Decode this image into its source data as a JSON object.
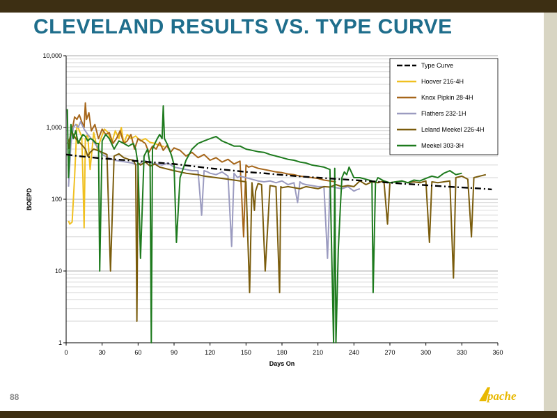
{
  "slide": {
    "title": "CLEVELAND RESULTS VS. TYPE CURVE",
    "page_number": "88",
    "logo_text": "Apache"
  },
  "colors": {
    "title": "#1f6e8c",
    "bars": "#3d2f13",
    "type_curve": "#000000",
    "hoover": "#f0c020",
    "knox": "#a6661a",
    "flathers": "#9b9bc0",
    "leland": "#7a5c0c",
    "meekel": "#1d7a1d"
  },
  "chart_data": {
    "type": "line",
    "y_scale": "log",
    "xlabel": "Days On",
    "ylabel": "BOEPD",
    "xlim": [
      0,
      360
    ],
    "ylim": [
      1,
      10000
    ],
    "x_ticks": [
      "0",
      "30",
      "60",
      "90",
      "120",
      "150",
      "180",
      "210",
      "240",
      "270",
      "300",
      "330",
      "360"
    ],
    "y_ticks": [
      "1",
      "10",
      "100",
      "1,000",
      "10,000"
    ],
    "grid": true,
    "legend_position": "top-right",
    "series": [
      {
        "name": "Type Curve",
        "color": "#000000",
        "dash": true,
        "x": [
          0,
          10,
          20,
          30,
          45,
          60,
          75,
          90,
          105,
          120,
          135,
          150,
          165,
          180,
          195,
          210,
          225,
          240,
          255,
          270,
          285,
          300,
          315,
          330,
          345,
          355
        ],
        "y": [
          420,
          400,
          385,
          370,
          355,
          340,
          325,
          310,
          290,
          270,
          255,
          240,
          230,
          218,
          208,
          200,
          192,
          185,
          178,
          170,
          163,
          157,
          151,
          146,
          141,
          137
        ]
      },
      {
        "name": "Hoover 216-4H",
        "color": "#f0c020",
        "dash": false,
        "x": [
          2,
          3,
          5,
          7,
          9,
          11,
          13,
          14,
          15,
          16,
          18,
          20,
          23,
          26,
          29,
          32,
          35,
          38,
          41,
          44,
          46,
          48,
          51,
          54,
          58,
          62,
          66,
          70,
          74,
          78,
          82
        ],
        "y": [
          50,
          45,
          48,
          200,
          1100,
          900,
          750,
          200,
          40,
          700,
          800,
          260,
          850,
          500,
          700,
          950,
          850,
          600,
          900,
          700,
          1000,
          600,
          800,
          700,
          760,
          650,
          700,
          620,
          600,
          560,
          540
        ]
      },
      {
        "name": "Knox Pipkin 28-4H",
        "color": "#a6661a",
        "dash": false,
        "x": [
          1,
          3,
          5,
          7,
          9,
          11,
          13,
          15,
          16,
          17,
          19,
          21,
          24,
          27,
          30,
          33,
          36,
          39,
          42,
          45,
          48,
          51,
          54,
          57,
          60,
          63,
          66,
          69,
          72,
          75,
          78,
          81,
          84,
          87,
          90,
          95,
          100,
          105,
          110,
          115,
          120,
          125,
          130,
          135,
          140,
          145,
          148,
          150,
          152,
          155,
          160,
          165,
          170,
          175,
          180,
          185,
          190,
          195,
          200,
          205,
          210,
          215,
          220,
          225
        ],
        "y": [
          600,
          700,
          900,
          1400,
          1300,
          1500,
          1200,
          1000,
          2200,
          1300,
          1600,
          900,
          1100,
          700,
          950,
          800,
          850,
          600,
          700,
          900,
          600,
          650,
          800,
          500,
          700,
          650,
          600,
          450,
          550,
          500,
          620,
          480,
          560,
          450,
          520,
          480,
          400,
          450,
          380,
          420,
          350,
          380,
          330,
          360,
          310,
          340,
          30,
          300,
          280,
          290,
          270,
          260,
          250,
          240,
          235,
          225,
          220,
          210,
          205,
          200,
          195,
          185,
          180,
          175
        ]
      },
      {
        "name": "Flathers 232-1H",
        "color": "#9b9bc0",
        "dash": false,
        "x": [
          2,
          4,
          6,
          8,
          10,
          12,
          15,
          18,
          21,
          24,
          27,
          30,
          35,
          40,
          45,
          50,
          55,
          60,
          65,
          70,
          75,
          80,
          85,
          90,
          95,
          100,
          105,
          110,
          113,
          115,
          118,
          120,
          125,
          130,
          135,
          138,
          140,
          143,
          145,
          150,
          155,
          160,
          165,
          170,
          175,
          180,
          185,
          190,
          193,
          195,
          197,
          200,
          205,
          210,
          215,
          218,
          220,
          225,
          230,
          235,
          240,
          242,
          245
        ],
        "y": [
          150,
          600,
          1000,
          1100,
          1000,
          1200,
          950,
          800,
          700,
          600,
          500,
          420,
          380,
          350,
          340,
          330,
          320,
          300,
          350,
          320,
          310,
          300,
          320,
          280,
          270,
          260,
          250,
          250,
          60,
          250,
          240,
          230,
          220,
          240,
          210,
          22,
          230,
          200,
          210,
          200,
          190,
          180,
          175,
          180,
          170,
          180,
          160,
          170,
          90,
          175,
          165,
          160,
          155,
          150,
          150,
          15,
          150,
          145,
          140,
          150,
          130,
          135,
          140
        ]
      },
      {
        "name": "Leland Meekel 226-4H",
        "color": "#7a5c0c",
        "dash": false,
        "x": [
          2,
          4,
          6,
          8,
          10,
          12,
          14,
          16,
          18,
          20,
          23,
          26,
          30,
          34,
          37,
          40,
          44,
          48,
          52,
          56,
          58,
          59,
          60,
          62,
          66,
          70,
          74,
          78,
          82,
          86,
          90,
          95,
          100,
          105,
          110,
          115,
          120,
          125,
          130,
          135,
          140,
          145,
          150,
          153,
          155,
          157,
          158,
          160,
          163,
          166,
          170,
          175,
          178,
          179,
          180,
          185,
          190,
          195,
          200,
          205,
          210,
          215,
          220,
          225,
          230,
          235,
          240,
          245,
          250,
          255,
          260,
          265,
          268,
          270,
          275,
          280,
          285,
          290,
          295,
          300,
          303,
          305,
          310,
          315,
          320,
          323,
          325,
          330,
          335,
          338,
          340,
          345,
          350
        ],
        "y": [
          500,
          900,
          800,
          700,
          650,
          600,
          550,
          500,
          400,
          450,
          500,
          480,
          450,
          420,
          10,
          400,
          430,
          380,
          360,
          350,
          300,
          2,
          320,
          300,
          330,
          290,
          310,
          280,
          270,
          260,
          250,
          240,
          230,
          225,
          220,
          210,
          205,
          200,
          195,
          190,
          185,
          180,
          175,
          5,
          170,
          70,
          130,
          165,
          160,
          10,
          155,
          150,
          5,
          150,
          145,
          150,
          145,
          140,
          150,
          145,
          140,
          150,
          148,
          160,
          150,
          155,
          150,
          180,
          160,
          175,
          170,
          180,
          45,
          170,
          175,
          180,
          170,
          175,
          170,
          180,
          25,
          175,
          170,
          175,
          180,
          8,
          200,
          210,
          190,
          30,
          200,
          210,
          220
        ]
      },
      {
        "name": "Meekel 303-3H",
        "color": "#1d7a1d",
        "dash": false,
        "x": [
          1,
          2,
          4,
          6,
          8,
          10,
          12,
          14,
          16,
          18,
          20,
          22,
          25,
          27,
          28,
          30,
          33,
          36,
          40,
          44,
          48,
          52,
          56,
          58,
          60,
          62,
          65,
          68,
          70,
          71,
          72,
          74,
          76,
          78,
          80,
          81,
          82,
          84,
          86,
          88,
          90,
          92,
          95,
          100,
          105,
          110,
          115,
          120,
          125,
          130,
          135,
          140,
          145,
          150,
          155,
          160,
          165,
          170,
          175,
          180,
          185,
          190,
          195,
          200,
          205,
          210,
          215,
          220,
          223,
          224,
          225,
          227,
          229,
          230,
          232,
          234,
          236,
          240,
          245,
          250,
          255,
          256,
          258,
          260,
          265,
          270,
          275,
          280,
          285,
          290,
          295,
          300,
          305,
          310,
          315,
          320,
          325,
          330
        ],
        "y": [
          1800,
          200,
          1100,
          700,
          900,
          600,
          700,
          800,
          750,
          650,
          700,
          680,
          600,
          600,
          10,
          650,
          800,
          700,
          500,
          650,
          600,
          550,
          600,
          500,
          300,
          15,
          400,
          500,
          300,
          1,
          500,
          600,
          700,
          800,
          700,
          2000,
          700,
          600,
          500,
          400,
          300,
          25,
          200,
          350,
          500,
          600,
          650,
          700,
          750,
          650,
          600,
          550,
          550,
          500,
          480,
          460,
          450,
          420,
          400,
          380,
          360,
          350,
          330,
          320,
          300,
          290,
          280,
          260,
          1,
          270,
          1,
          20,
          100,
          200,
          240,
          220,
          280,
          200,
          200,
          190,
          180,
          5,
          170,
          200,
          180,
          170,
          175,
          180,
          170,
          185,
          180,
          195,
          210,
          200,
          230,
          250,
          220,
          230
        ]
      }
    ]
  }
}
